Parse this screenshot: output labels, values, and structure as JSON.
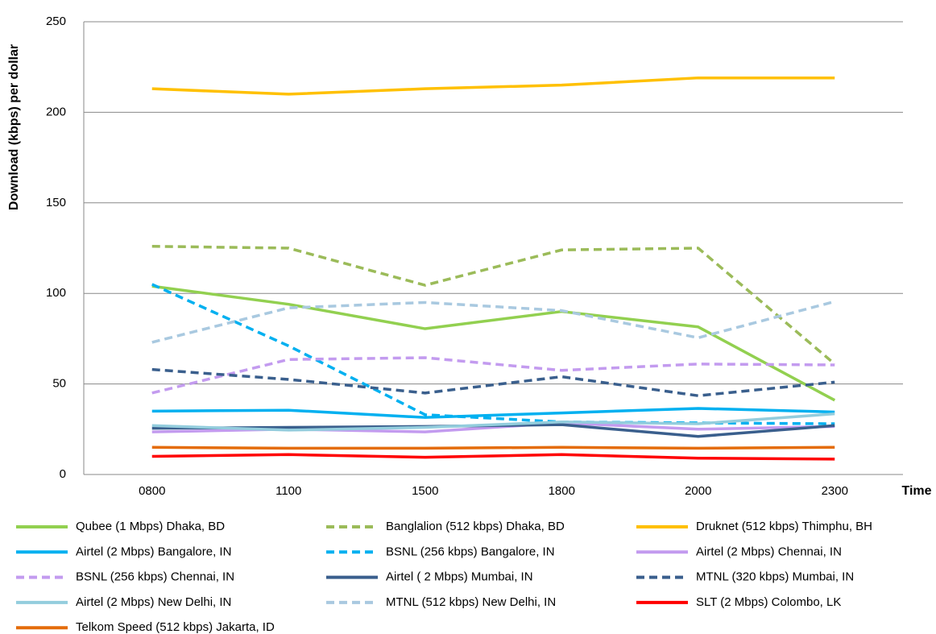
{
  "chart_data": {
    "type": "line",
    "y_label": "Download (kbps) per dollar",
    "x_label": "Time",
    "categories": [
      "0800",
      "1100",
      "1500",
      "1800",
      "2000",
      "2300"
    ],
    "ylim": [
      0,
      250
    ],
    "yticks": [
      0,
      50,
      100,
      150,
      200,
      250
    ],
    "grid": true,
    "series": [
      {
        "name": "Qubee (1 Mbps) Dhaka, BD",
        "color": "#92d050",
        "dashed": false,
        "values": [
          104,
          94,
          80.5,
          90,
          81.5,
          41
        ]
      },
      {
        "name": "Banglalion (512 kbps) Dhaka, BD",
        "color": "#9bbb59",
        "dashed": true,
        "values": [
          126,
          125,
          104.5,
          124,
          125,
          61
        ]
      },
      {
        "name": "Druknet (512 kbps) Thimphu, BH",
        "color": "#ffc000",
        "dashed": false,
        "values": [
          213,
          210,
          213,
          215,
          219,
          219
        ]
      },
      {
        "name": "Airtel (2 Mbps) Bangalore, IN",
        "color": "#00b0f0",
        "dashed": false,
        "values": [
          35,
          35.5,
          31.5,
          34,
          36.5,
          34.5
        ]
      },
      {
        "name": "BSNL (256 kbps) Bangalore, IN",
        "color": "#00b0f0",
        "dashed": true,
        "values": [
          105,
          71,
          33,
          29,
          28.5,
          28
        ]
      },
      {
        "name": "Airtel (2 Mbps) Chennai, IN",
        "color": "#c39bef",
        "dashed": false,
        "values": [
          23.5,
          25,
          23.5,
          28.5,
          25,
          26.5
        ]
      },
      {
        "name": "BSNL (256 kbps) Chennai, IN",
        "color": "#c39bef",
        "dashed": true,
        "values": [
          45,
          63.5,
          64.5,
          57.5,
          61,
          60.5
        ]
      },
      {
        "name": "Airtel ( 2 Mbps) Mumbai, IN",
        "color": "#3a5f8d",
        "dashed": false,
        "values": [
          25.5,
          26,
          26.5,
          27.5,
          21,
          27
        ]
      },
      {
        "name": "MTNL (320 kbps) Mumbai, IN",
        "color": "#3a5f8d",
        "dashed": true,
        "values": [
          58,
          52.5,
          45,
          54,
          43.5,
          51
        ]
      },
      {
        "name": "Airtel (2 Mbps) New Delhi, IN",
        "color": "#93cddd",
        "dashed": false,
        "values": [
          27,
          24.5,
          26,
          29,
          28,
          33.5
        ]
      },
      {
        "name": "MTNL (512 kbps) New Delhi, IN",
        "color": "#a9c9e0",
        "dashed": true,
        "values": [
          73,
          92,
          95,
          90.5,
          75.5,
          95.5
        ]
      },
      {
        "name": "SLT (2 Mbps) Colombo, LK",
        "color": "#ff0000",
        "dashed": false,
        "values": [
          10,
          11,
          9.5,
          11,
          9,
          8.5
        ]
      },
      {
        "name": "Telkom Speed (512 kbps) Jakarta, ID",
        "color": "#e46c0a",
        "dashed": false,
        "values": [
          15,
          14.5,
          14.5,
          15,
          14.5,
          15
        ]
      }
    ]
  }
}
